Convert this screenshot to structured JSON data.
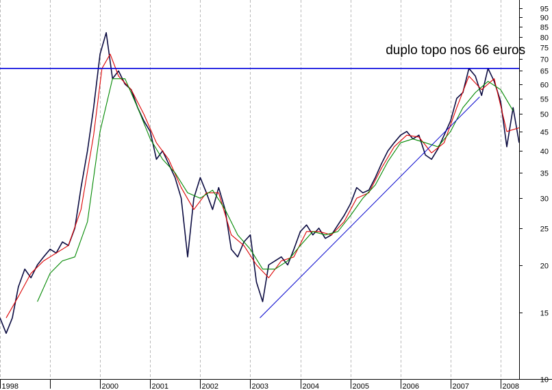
{
  "chart_data": {
    "type": "line",
    "title": "",
    "xlabel": "",
    "ylabel": "",
    "y_scale": "log",
    "ylim": [
      10,
      100
    ],
    "xlim": [
      "1998-01-01",
      "2008-05-15"
    ],
    "grid": "vertical dashed at year starts",
    "y_ticks": [
      10,
      15,
      20,
      25,
      30,
      35,
      40,
      45,
      50,
      55,
      60,
      65,
      70,
      75,
      80,
      85,
      90,
      95
    ],
    "x_ticks": [
      {
        "date": "1998-01-01",
        "label": "1998"
      },
      {
        "date": "1999-01-01",
        "label": ""
      },
      {
        "date": "2000-01-01",
        "label": "2000"
      },
      {
        "date": "2001-01-01",
        "label": "2001"
      },
      {
        "date": "2002-01-01",
        "label": "2002"
      },
      {
        "date": "2003-01-01",
        "label": "2003"
      },
      {
        "date": "2004-01-01",
        "label": "2004"
      },
      {
        "date": "2005-01-01",
        "label": "2005"
      },
      {
        "date": "2006-01-01",
        "label": "2006"
      },
      {
        "date": "2007-01-01",
        "label": "2007"
      },
      {
        "date": "2008-01-01",
        "label": "2008"
      }
    ],
    "annotations": [
      {
        "text": "duplo topo nos 66 euros",
        "date": "2005-09-15",
        "value": 72
      }
    ],
    "horizontal_lines": [
      {
        "value": 66,
        "color": "#0000dd"
      }
    ],
    "trend_lines": [
      {
        "from": {
          "date": "2003-03-12",
          "value": 14.5
        },
        "to": {
          "date": "2007-08-01",
          "value": 55.5
        },
        "color": "#0000cc"
      }
    ],
    "series": [
      {
        "color": "#0a0a40",
        "x": [
          "1998-01-01",
          "1998-02-15",
          "1998-04-01",
          "1998-05-15",
          "1998-07-01",
          "1998-08-15",
          "1998-10-01",
          "1998-11-15",
          "1999-01-01",
          "1999-02-15",
          "1999-04-01",
          "1999-05-15",
          "1999-07-01",
          "1999-08-15",
          "1999-10-01",
          "1999-11-15",
          "2000-01-01",
          "2000-02-15",
          "2000-04-01",
          "2000-05-15",
          "2000-07-01",
          "2000-08-15",
          "2000-10-01",
          "2000-11-15",
          "2001-01-01",
          "2001-02-15",
          "2001-04-01",
          "2001-05-15",
          "2001-07-01",
          "2001-08-15",
          "2001-10-01",
          "2001-11-15",
          "2002-01-01",
          "2002-02-15",
          "2002-04-01",
          "2002-05-15",
          "2002-07-01",
          "2002-08-15",
          "2002-10-01",
          "2002-11-15",
          "2003-01-01",
          "2003-02-15",
          "2003-04-01",
          "2003-05-15",
          "2003-07-01",
          "2003-08-15",
          "2003-10-01",
          "2003-11-15",
          "2004-01-01",
          "2004-02-15",
          "2004-04-01",
          "2004-05-15",
          "2004-07-01",
          "2004-08-15",
          "2004-10-01",
          "2004-11-15",
          "2005-01-01",
          "2005-02-15",
          "2005-04-01",
          "2005-05-15",
          "2005-07-01",
          "2005-08-15",
          "2005-10-01",
          "2005-11-15",
          "2006-01-01",
          "2006-02-15",
          "2006-04-01",
          "2006-05-15",
          "2006-07-01",
          "2006-08-15",
          "2006-10-01",
          "2006-11-15",
          "2007-01-01",
          "2007-02-15",
          "2007-04-01",
          "2007-05-15",
          "2007-07-01",
          "2007-08-15",
          "2007-10-01",
          "2007-11-15",
          "2008-01-01",
          "2008-02-15",
          "2008-04-01",
          "2008-05-15"
        ],
        "values": [
          14.5,
          13.2,
          14.5,
          17.5,
          19.5,
          18.5,
          20.0,
          21.0,
          22.0,
          21.5,
          23.0,
          22.5,
          25.0,
          32.0,
          40.0,
          52.0,
          72.0,
          82.0,
          62.0,
          65.0,
          60.0,
          58.0,
          52.0,
          48.0,
          45.0,
          38.0,
          40.0,
          37.0,
          34.0,
          30.0,
          21.0,
          30.0,
          34.0,
          31.0,
          28.0,
          32.0,
          28.0,
          22.0,
          21.0,
          23.0,
          24.0,
          18.0,
          16.0,
          20.0,
          20.5,
          21.0,
          20.0,
          22.0,
          24.5,
          25.5,
          24.0,
          25.0,
          23.5,
          24.0,
          25.5,
          27.0,
          29.0,
          32.0,
          31.0,
          31.5,
          34.0,
          37.0,
          40.0,
          42.0,
          44.0,
          45.0,
          43.0,
          44.0,
          39.0,
          38.0,
          40.5,
          44.0,
          48.0,
          55.0,
          57.0,
          66.0,
          63.0,
          56.0,
          66.0,
          61.0,
          54.0,
          41.0,
          52.0,
          42.0
        ]
      },
      {
        "color": "#dd0000",
        "x": [
          "1998-02-15",
          "1998-05-15",
          "1998-08-15",
          "1998-11-15",
          "1999-02-15",
          "1999-05-15",
          "1999-08-15",
          "1999-11-15",
          "2000-01-15",
          "2000-03-15",
          "2000-05-15",
          "2000-08-15",
          "2000-11-15",
          "2001-02-15",
          "2001-05-15",
          "2001-08-15",
          "2001-11-15",
          "2002-02-15",
          "2002-05-15",
          "2002-08-15",
          "2002-11-15",
          "2003-02-15",
          "2003-05-15",
          "2003-08-15",
          "2003-11-15",
          "2004-02-15",
          "2004-05-15",
          "2004-08-15",
          "2004-11-15",
          "2005-02-15",
          "2005-05-15",
          "2005-08-15",
          "2005-11-15",
          "2006-02-15",
          "2006-05-15",
          "2006-08-15",
          "2006-11-15",
          "2007-02-15",
          "2007-05-15",
          "2007-08-15",
          "2007-11-15",
          "2008-02-15",
          "2008-05-15"
        ],
        "values": [
          14.5,
          16.5,
          19.0,
          20.5,
          21.5,
          22.5,
          28.0,
          44.0,
          66.0,
          72.0,
          63.0,
          58.0,
          50.0,
          42.0,
          38.0,
          32.0,
          28.0,
          31.0,
          31.0,
          24.0,
          22.5,
          20.0,
          18.5,
          20.5,
          21.0,
          24.5,
          24.5,
          24.0,
          26.0,
          30.0,
          31.0,
          36.0,
          41.0,
          44.0,
          43.5,
          39.5,
          42.0,
          52.0,
          63.0,
          58.0,
          62.0,
          45.0,
          46.0
        ]
      },
      {
        "color": "#008800",
        "x": [
          "1998-10-01",
          "1999-01-01",
          "1999-04-01",
          "1999-07-01",
          "1999-10-01",
          "2000-01-01",
          "2000-04-01",
          "2000-07-01",
          "2000-10-01",
          "2001-01-01",
          "2001-04-01",
          "2001-07-01",
          "2001-10-01",
          "2002-01-01",
          "2002-04-01",
          "2002-07-01",
          "2002-10-01",
          "2003-01-01",
          "2003-04-01",
          "2003-07-01",
          "2003-10-01",
          "2004-01-01",
          "2004-04-01",
          "2004-07-01",
          "2004-10-01",
          "2005-01-01",
          "2005-04-01",
          "2005-07-01",
          "2005-10-01",
          "2006-01-01",
          "2006-04-01",
          "2006-07-01",
          "2006-10-01",
          "2007-01-01",
          "2007-04-01",
          "2007-07-01",
          "2007-10-01",
          "2008-01-01",
          "2008-04-01"
        ],
        "values": [
          16.0,
          19.0,
          20.5,
          21.0,
          26.0,
          45.0,
          62.0,
          62.0,
          52.0,
          43.0,
          38.0,
          35.0,
          31.0,
          30.0,
          31.5,
          28.0,
          24.0,
          22.0,
          19.5,
          19.5,
          20.5,
          22.5,
          24.5,
          24.0,
          24.5,
          27.0,
          30.0,
          32.5,
          37.5,
          42.0,
          43.0,
          42.0,
          41.0,
          45.0,
          52.0,
          57.0,
          61.0,
          58.0,
          51.0
        ]
      }
    ]
  }
}
